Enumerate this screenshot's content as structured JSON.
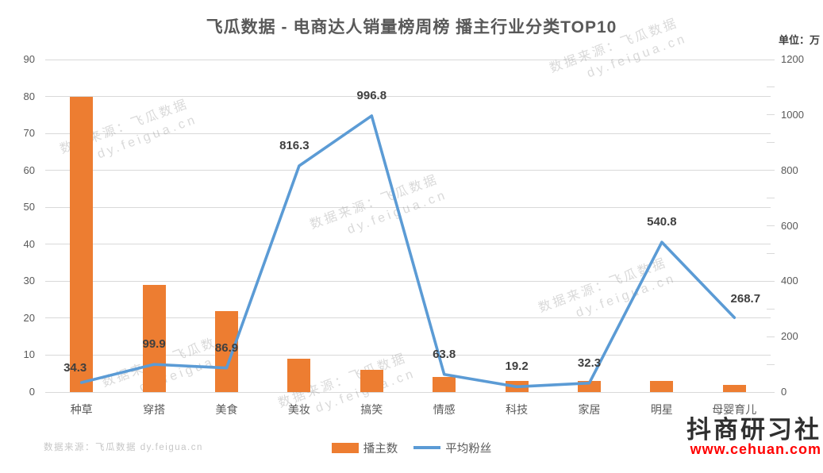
{
  "title": "飞瓜数据 - 电商达人销量榜周榜 播主行业分类TOP10",
  "unit_label": "单位：万",
  "legend": {
    "bar_label": "播主数",
    "line_label": "平均粉丝"
  },
  "watermark": {
    "source_line": "数据来源：飞瓜数据 dy.feigua.cn",
    "diag_line1": "数据来源：飞瓜数据",
    "diag_line2": "dy.feigua.cn"
  },
  "stamp": {
    "name": "抖商研习社",
    "url": "www.cehuan.com",
    "name_color": "#2f2f2f",
    "url_color": "#ff0000"
  },
  "colors": {
    "bar": "#ED7D31",
    "line": "#5B9BD5",
    "grid": "#d9d9d9",
    "axis_text": "#595959",
    "point_label": "#3f3f3f"
  },
  "chart_data": {
    "type": "bar",
    "subtype": "combo-bar-line-dual-axis",
    "title": "飞瓜数据 - 电商达人销量榜周榜 播主行业分类TOP10",
    "categories": [
      "种草",
      "穿搭",
      "美食",
      "美妆",
      "搞笑",
      "情感",
      "科技",
      "家居",
      "明星",
      "母婴育儿"
    ],
    "series": [
      {
        "name": "播主数",
        "type": "bar",
        "axis": "left",
        "values": [
          80,
          29,
          22,
          9,
          6,
          4,
          3,
          3,
          3,
          2
        ],
        "values_estimated_from_pixels": true
      },
      {
        "name": "平均粉丝",
        "type": "line",
        "axis": "right",
        "unit": "万",
        "values": [
          34.3,
          99.9,
          86.9,
          816.3,
          996.8,
          63.8,
          19.2,
          32.3,
          540.8,
          268.7
        ],
        "data_labels_shown": true
      }
    ],
    "left_axis": {
      "min": 0,
      "max": 90,
      "step": 10,
      "ticks": [
        0,
        10,
        20,
        30,
        40,
        50,
        60,
        70,
        80,
        90
      ]
    },
    "right_axis": {
      "min": 0,
      "max": 1200,
      "step": 200,
      "ticks": [
        0,
        200,
        400,
        600,
        800,
        1000,
        1200
      ],
      "minor_step": 100,
      "unit": "单位：万"
    },
    "grid": true,
    "legend_position": "bottom"
  }
}
